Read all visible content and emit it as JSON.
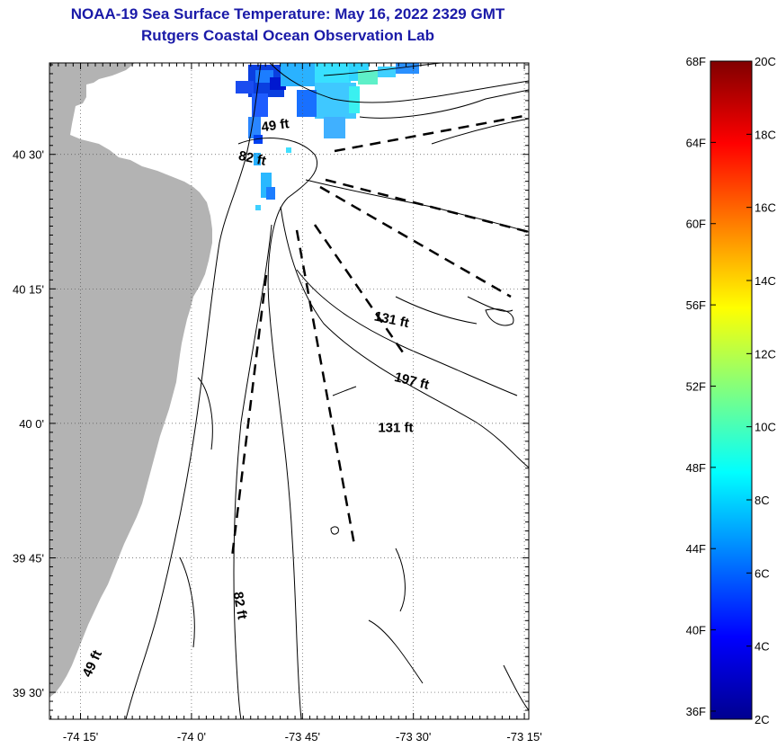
{
  "header": {
    "title": "NOAA-19 Sea Surface Temperature:  May 16, 2022 2329 GMT",
    "subtitle": "Rutgers Coastal Ocean Observation Lab"
  },
  "map": {
    "lon_range": [
      -74.32,
      -73.24
    ],
    "lat_range": [
      39.45,
      40.67
    ],
    "lon_ticks": [
      {
        "value": -74.25,
        "label": "-74 15'"
      },
      {
        "value": -74.0,
        "label": "-74 0'"
      },
      {
        "value": -73.75,
        "label": "-73 45'"
      },
      {
        "value": -73.5,
        "label": "-73 30'"
      },
      {
        "value": -73.25,
        "label": "-73 15'"
      }
    ],
    "lat_ticks": [
      {
        "value": 40.5,
        "label": "40 30'"
      },
      {
        "value": 40.25,
        "label": "40 15'"
      },
      {
        "value": 40.0,
        "label": "40 0'"
      },
      {
        "value": 39.75,
        "label": "39 45'"
      },
      {
        "value": 39.5,
        "label": "39 30'"
      }
    ],
    "grid": true,
    "land_color": "#b3b3b3",
    "contour_labels": [
      {
        "text": "49 ft",
        "lon": -73.81,
        "lat": 40.546,
        "rotate": -8
      },
      {
        "text": "82 ft",
        "lon": -73.865,
        "lat": 40.485,
        "rotate": 12
      },
      {
        "text": "131 ft",
        "lon": -73.551,
        "lat": 40.185,
        "rotate": 12
      },
      {
        "text": "197 ft",
        "lon": -73.506,
        "lat": 40.071,
        "rotate": 14
      },
      {
        "text": "131 ft",
        "lon": -73.54,
        "lat": 39.984,
        "rotate": 0
      },
      {
        "text": "82 ft",
        "lon": -73.9,
        "lat": 39.66,
        "rotate": 80
      },
      {
        "text": "49 ft",
        "lon": -74.215,
        "lat": 39.55,
        "rotate": -65
      }
    ]
  },
  "colorbar": {
    "fahrenheit": [
      {
        "value": 68,
        "label": "68F"
      },
      {
        "value": 64,
        "label": "64F"
      },
      {
        "value": 60,
        "label": "60F"
      },
      {
        "value": 56,
        "label": "56F"
      },
      {
        "value": 52,
        "label": "52F"
      },
      {
        "value": 48,
        "label": "48F"
      },
      {
        "value": 44,
        "label": "44F"
      },
      {
        "value": 40,
        "label": "40F"
      },
      {
        "value": 36,
        "label": "36F"
      }
    ],
    "celsius": [
      {
        "value": 20,
        "label": "20C"
      },
      {
        "value": 18,
        "label": "18C"
      },
      {
        "value": 16,
        "label": "16C"
      },
      {
        "value": 14,
        "label": "14C"
      },
      {
        "value": 12,
        "label": "12C"
      },
      {
        "value": 10,
        "label": "10C"
      },
      {
        "value": 8,
        "label": "8C"
      },
      {
        "value": 6,
        "label": "6C"
      },
      {
        "value": 4,
        "label": "4C"
      },
      {
        "value": 2,
        "label": "2C"
      }
    ],
    "range_c": [
      2,
      20
    ],
    "colormap": [
      "#00008f",
      "#0000ff",
      "#0080ff",
      "#00ffff",
      "#80ff80",
      "#ffff00",
      "#ff8000",
      "#ff0000",
      "#800000"
    ]
  }
}
